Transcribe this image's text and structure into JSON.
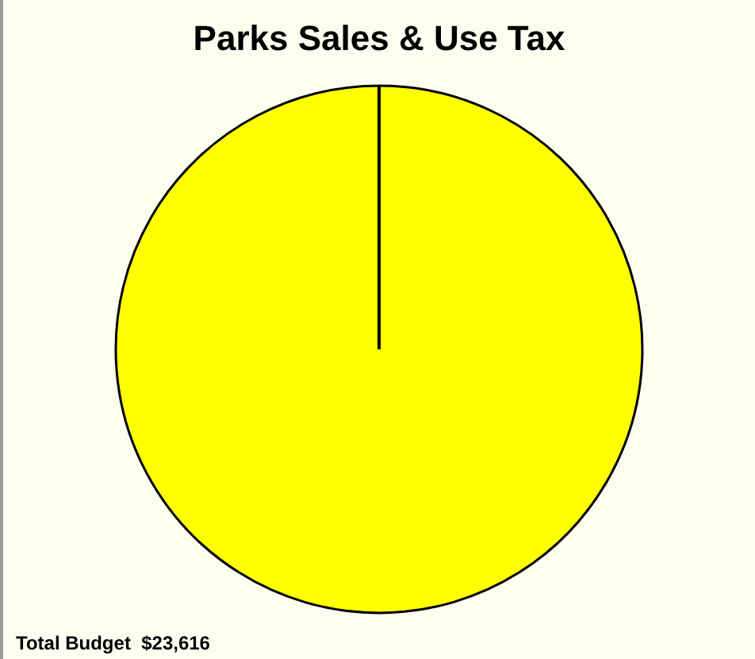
{
  "chart_data": {
    "type": "pie",
    "title": "Parks Sales & Use Tax",
    "categories": [
      null
    ],
    "values": [
      100
    ],
    "colors": [
      "#ffff00"
    ],
    "annotations": [
      "Total Budget  $23,616"
    ]
  }
}
